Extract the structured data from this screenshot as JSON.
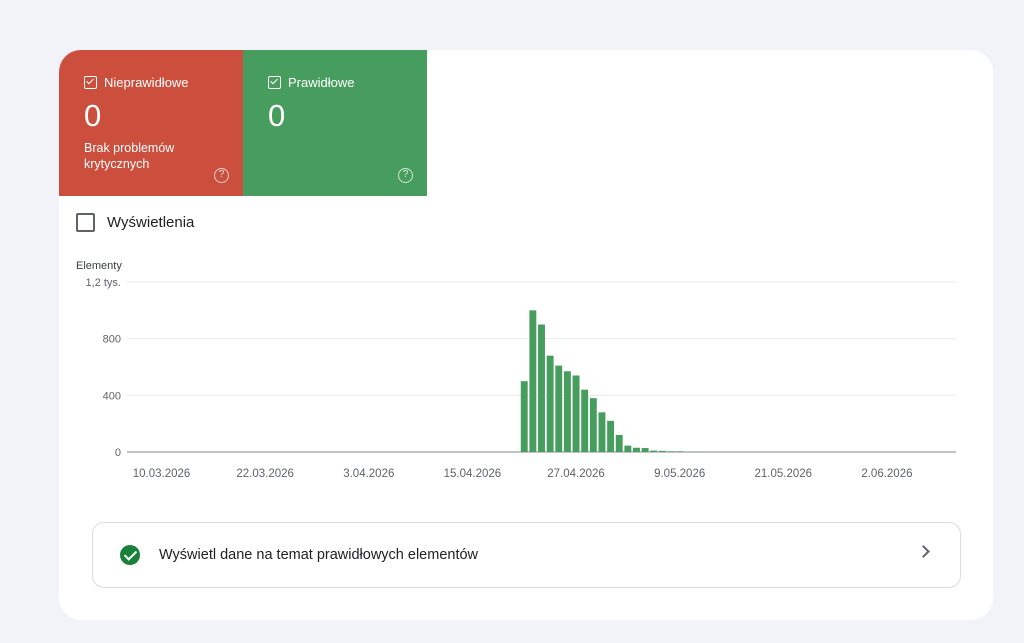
{
  "tiles": {
    "invalid": {
      "label": "Nieprawidłowe",
      "count": "0",
      "subtitle": "Brak problemów krytycznych",
      "help": "?",
      "color": "#cc4f3e",
      "checked": true
    },
    "valid": {
      "label": "Prawidłowe",
      "count": "0",
      "help": "?",
      "color": "#479d5e",
      "checked": true
    }
  },
  "views_checkbox": {
    "label": "Wyświetlenia",
    "checked": false
  },
  "chart_data": {
    "type": "bar",
    "ylabel": "Elementy",
    "ylim": [
      0,
      1200
    ],
    "y_ticks": [
      "0",
      "400",
      "800",
      "1,2 tys."
    ],
    "x_tick_labels": [
      "10.03.2026",
      "22.03.2026",
      "3.04.2026",
      "15.04.2026",
      "27.04.2026",
      "9.05.2026",
      "21.05.2026",
      "2.06.2026"
    ],
    "x_range": [
      "2026-03-06",
      "2026-06-10"
    ],
    "color": "#479d5e",
    "categories": [
      "2026-04-21",
      "2026-04-22",
      "2026-04-23",
      "2026-04-24",
      "2026-04-25",
      "2026-04-26",
      "2026-04-27",
      "2026-04-28",
      "2026-04-29",
      "2026-04-30",
      "2026-05-01",
      "2026-05-02",
      "2026-05-03",
      "2026-05-04",
      "2026-05-05",
      "2026-05-06",
      "2026-05-07",
      "2026-05-08",
      "2026-05-09",
      "2026-05-10",
      "2026-05-11"
    ],
    "values": [
      500,
      1000,
      900,
      680,
      610,
      570,
      540,
      440,
      380,
      280,
      220,
      120,
      45,
      30,
      28,
      10,
      8,
      5,
      5,
      3,
      2
    ],
    "grid": true
  },
  "link": {
    "text": "Wyświetl dane na temat prawidłowych elementów"
  }
}
